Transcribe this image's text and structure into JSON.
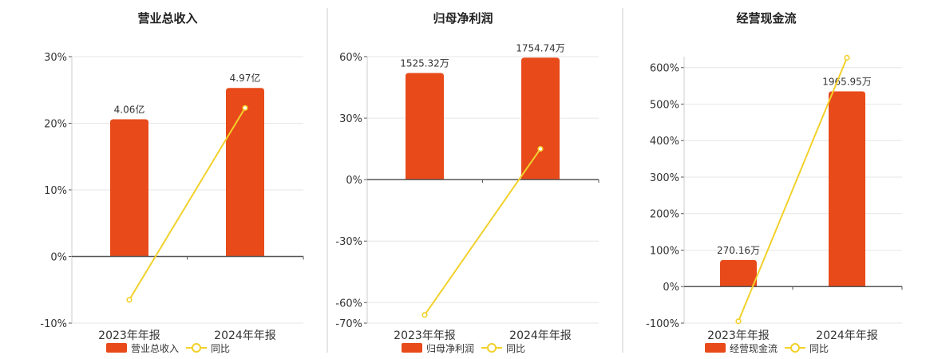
{
  "colors": {
    "bar": "#E84A1A",
    "line": "#F2D12B",
    "grid": "#e6e6e6",
    "axis": "#555555",
    "divider": "#cccccc"
  },
  "chart_data": [
    {
      "type": "bar",
      "title": "营业总收入",
      "categories": [
        "2023年年报",
        "2024年年报"
      ],
      "series": [
        {
          "name": "营业总收入",
          "type": "bar",
          "values": [
            20.6,
            25.3
          ],
          "labels": [
            "4.06亿",
            "4.97亿"
          ]
        },
        {
          "name": "同比",
          "type": "line",
          "values": [
            -6.5,
            22.3
          ]
        }
      ],
      "ylim": [
        -10,
        30
      ],
      "yticks": [
        "30%",
        "20%",
        "10%",
        "0%",
        "-10%"
      ],
      "ytick_values": [
        30,
        20,
        10,
        0,
        -10
      ],
      "legend": [
        "营业总收入",
        "同比"
      ],
      "grid": true
    },
    {
      "type": "bar",
      "title": "归母净利润",
      "categories": [
        "2023年年报",
        "2024年年报"
      ],
      "series": [
        {
          "name": "归母净利润",
          "type": "bar",
          "values": [
            52,
            59.5
          ],
          "labels": [
            "1525.32万",
            "1754.74万"
          ]
        },
        {
          "name": "同比",
          "type": "line",
          "values": [
            -66,
            15
          ]
        }
      ],
      "ylim": [
        -70,
        60
      ],
      "yticks": [
        "60%",
        "30%",
        "0%",
        "-30%",
        "-60%",
        "-70%"
      ],
      "ytick_values": [
        60,
        30,
        0,
        -30,
        -60,
        -70
      ],
      "legend": [
        "归母净利润",
        "同比"
      ],
      "grid": true
    },
    {
      "type": "bar",
      "title": "经营现金流",
      "categories": [
        "2023年年报",
        "2024年年报"
      ],
      "series": [
        {
          "name": "经营现金流",
          "type": "bar",
          "values": [
            73,
            535
          ],
          "labels": [
            "270.16万",
            "1965.95万"
          ]
        },
        {
          "name": "同比",
          "type": "line",
          "values": [
            -95,
            627
          ]
        }
      ],
      "ylim": [
        -100,
        630
      ],
      "yticks": [
        "600%",
        "500%",
        "400%",
        "300%",
        "200%",
        "100%",
        "0%",
        "-100%"
      ],
      "ytick_values": [
        600,
        500,
        400,
        300,
        200,
        100,
        0,
        -100
      ],
      "legend": [
        "经营现金流",
        "同比"
      ],
      "grid": true
    }
  ]
}
